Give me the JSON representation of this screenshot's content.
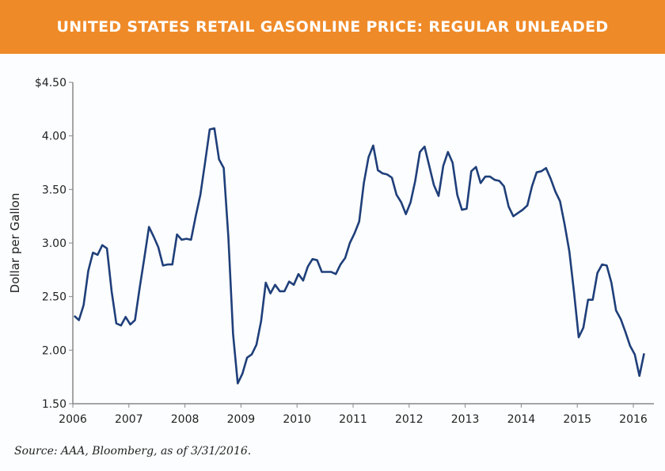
{
  "header": {
    "title": "UNITED STATES RETAIL GASONLINE PRICE: REGULAR UNLEADED",
    "color": "#ef8a28"
  },
  "footer": {
    "source": "Source: AAA, Bloomberg, as of 3/31/2016."
  },
  "chart_data": {
    "type": "line",
    "title": "UNITED STATES RETAIL GASONLINE PRICE: REGULAR UNLEADED",
    "xlabel": "",
    "ylabel": "Dollar per Gallon",
    "ylim": [
      1.5,
      4.5
    ],
    "xlim": [
      2006,
      2016.25
    ],
    "yticks": [
      "1.50",
      "2.00",
      "2.50",
      "3.00",
      "3.50",
      "4.00",
      "$4.50"
    ],
    "ytick_values": [
      1.5,
      2.0,
      2.5,
      3.0,
      3.5,
      4.0,
      4.5
    ],
    "xticks": [
      "2006",
      "2007",
      "2008",
      "2009",
      "2010",
      "2011",
      "2012",
      "2013",
      "2014",
      "2015",
      "2016"
    ],
    "grid": false,
    "line_color": "#1f3f7a",
    "series": [
      {
        "start": "2006-01",
        "frequency": "monthly",
        "values": [
          2.32,
          2.28,
          2.42,
          2.74,
          2.91,
          2.89,
          2.98,
          2.95,
          2.55,
          2.25,
          2.23,
          2.31,
          2.24,
          2.28,
          2.58,
          2.86,
          3.15,
          3.06,
          2.96,
          2.79,
          2.8,
          2.8,
          3.08,
          3.03,
          3.04,
          3.03,
          3.25,
          3.45,
          3.75,
          4.06,
          4.07,
          3.78,
          3.7,
          3.05,
          2.15,
          1.69,
          1.78,
          1.93,
          1.96,
          2.05,
          2.27,
          2.63,
          2.53,
          2.61,
          2.55,
          2.55,
          2.64,
          2.61,
          2.71,
          2.65,
          2.78,
          2.85,
          2.84,
          2.73,
          2.73,
          2.73,
          2.71,
          2.8,
          2.86,
          3.0,
          3.09,
          3.2,
          3.56,
          3.8,
          3.91,
          3.68,
          3.65,
          3.64,
          3.61,
          3.45,
          3.38,
          3.27,
          3.38,
          3.58,
          3.85,
          3.9,
          3.72,
          3.54,
          3.44,
          3.72,
          3.85,
          3.75,
          3.45,
          3.31,
          3.32,
          3.67,
          3.71,
          3.56,
          3.62,
          3.62,
          3.59,
          3.58,
          3.53,
          3.34,
          3.25,
          3.28,
          3.31,
          3.35,
          3.53,
          3.66,
          3.67,
          3.7,
          3.6,
          3.48,
          3.39,
          3.17,
          2.92,
          2.54,
          2.12,
          2.21,
          2.47,
          2.47,
          2.72,
          2.8,
          2.79,
          2.63,
          2.37,
          2.29,
          2.17,
          2.04,
          1.96,
          1.76,
          1.97
        ]
      }
    ]
  }
}
